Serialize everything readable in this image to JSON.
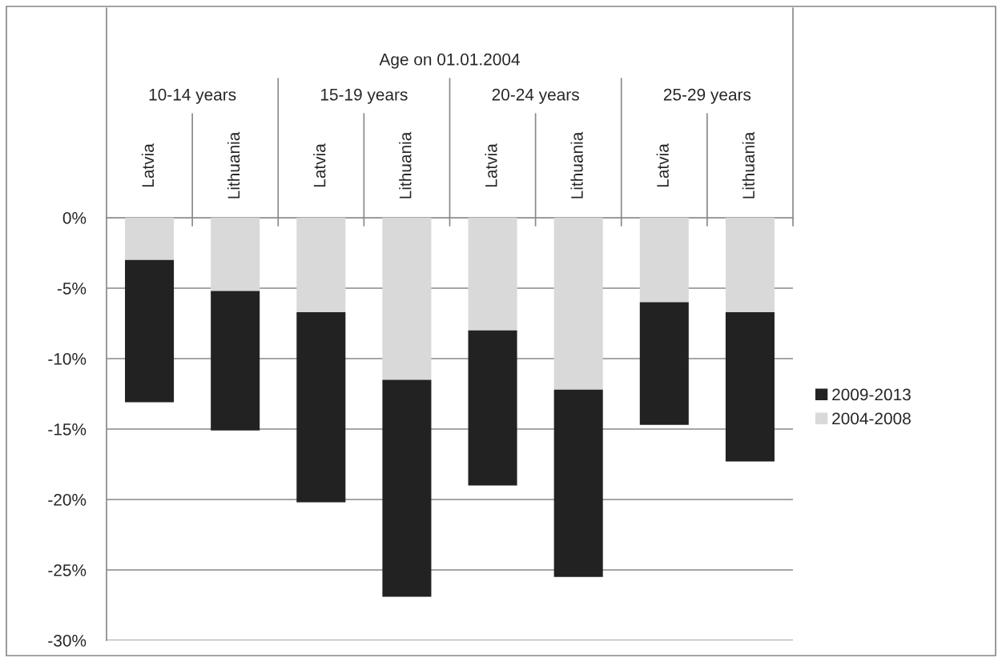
{
  "chart_data": {
    "type": "bar",
    "stacked": true,
    "xlabel": "Age on 01.01.2004",
    "categories": [
      "Latvia",
      "Lithuania",
      "Latvia",
      "Lithuania",
      "Latvia",
      "Lithuania",
      "Latvia",
      "Lithuania"
    ],
    "annotations": [
      "10-14 years",
      "15-19 years",
      "20-24 years",
      "25-29 years"
    ],
    "series": [
      {
        "name": "2004-2008",
        "color": "#d9d9d9",
        "values": [
          -3.0,
          -5.2,
          -6.7,
          -11.5,
          -8.0,
          -12.2,
          -6.0,
          -6.7
        ]
      },
      {
        "name": "2009-2013",
        "color": "#222222",
        "values": [
          -10.1,
          -9.9,
          -13.5,
          -15.4,
          -11.0,
          -13.3,
          -8.7,
          -10.6
        ]
      }
    ],
    "ylim": [
      -30,
      0
    ],
    "yticks": [
      {
        "value": 0,
        "label": "0%"
      },
      {
        "value": -5,
        "label": "-5%"
      },
      {
        "value": -10,
        "label": "-10%"
      },
      {
        "value": -15,
        "label": "-15%"
      },
      {
        "value": -20,
        "label": "-20%"
      },
      {
        "value": -25,
        "label": "-25%"
      },
      {
        "value": -30,
        "label": "-30%"
      }
    ],
    "grid": "y",
    "legend": "right"
  }
}
